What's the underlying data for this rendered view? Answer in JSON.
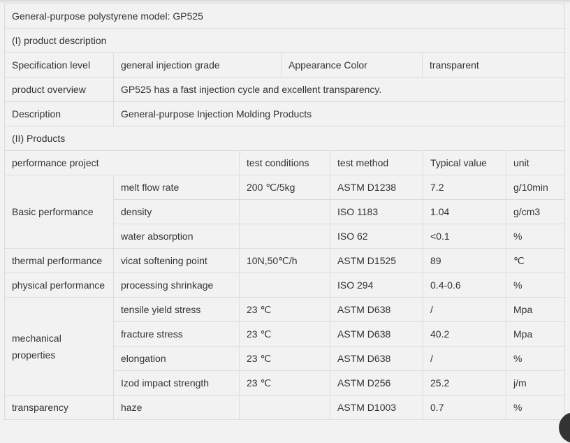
{
  "title": "General-purpose polystyrene model: GP525",
  "section1": {
    "heading": "(I) product description",
    "spec_label": "Specification level",
    "spec_value": "general injection grade",
    "color_label": "Appearance Color",
    "color_value": "transparent",
    "overview_label": "product overview",
    "overview_value": "GP525 has a fast injection cycle and excellent transparency.",
    "desc_label": "Description",
    "desc_value": "General-purpose Injection Molding Products"
  },
  "section2": {
    "heading": "(II) Products",
    "headers": [
      "performance project",
      "test conditions",
      "test method",
      "Typical value",
      "unit"
    ],
    "groups": [
      {
        "name": "Basic performance",
        "rows": [
          [
            "melt flow rate",
            "200 ℃/5kg",
            "ASTM D1238",
            "7.2",
            "g/10min"
          ],
          [
            "density",
            "",
            "ISO 1183",
            "1.04",
            "g/cm3"
          ],
          [
            "water absorption",
            "",
            "ISO 62",
            "<0.1",
            "%"
          ]
        ]
      },
      {
        "name": "thermal performance",
        "rows": [
          [
            "vicat softening point",
            "10N,50℃/h",
            "ASTM D1525",
            "89",
            "℃"
          ]
        ]
      },
      {
        "name": "physical performance",
        "rows": [
          [
            "processing shrinkage",
            "",
            "ISO 294",
            "0.4-0.6",
            "%"
          ]
        ]
      },
      {
        "name": "mechanical properties",
        "rows": [
          [
            "tensile yield stress",
            "23 ℃",
            "ASTM D638",
            "/",
            "Mpa"
          ],
          [
            "fracture stress",
            "23 ℃",
            "ASTM D638",
            "40.2",
            "Mpa"
          ],
          [
            "elongation",
            "23 ℃",
            "ASTM D638",
            "/",
            "%"
          ],
          [
            "Izod impact strength",
            "23 ℃",
            "ASTM D256",
            "25.2",
            "j/m"
          ]
        ]
      },
      {
        "name": "transparency",
        "rows": [
          [
            "haze",
            "",
            "ASTM D1003",
            "0.7",
            "%"
          ]
        ]
      }
    ]
  }
}
